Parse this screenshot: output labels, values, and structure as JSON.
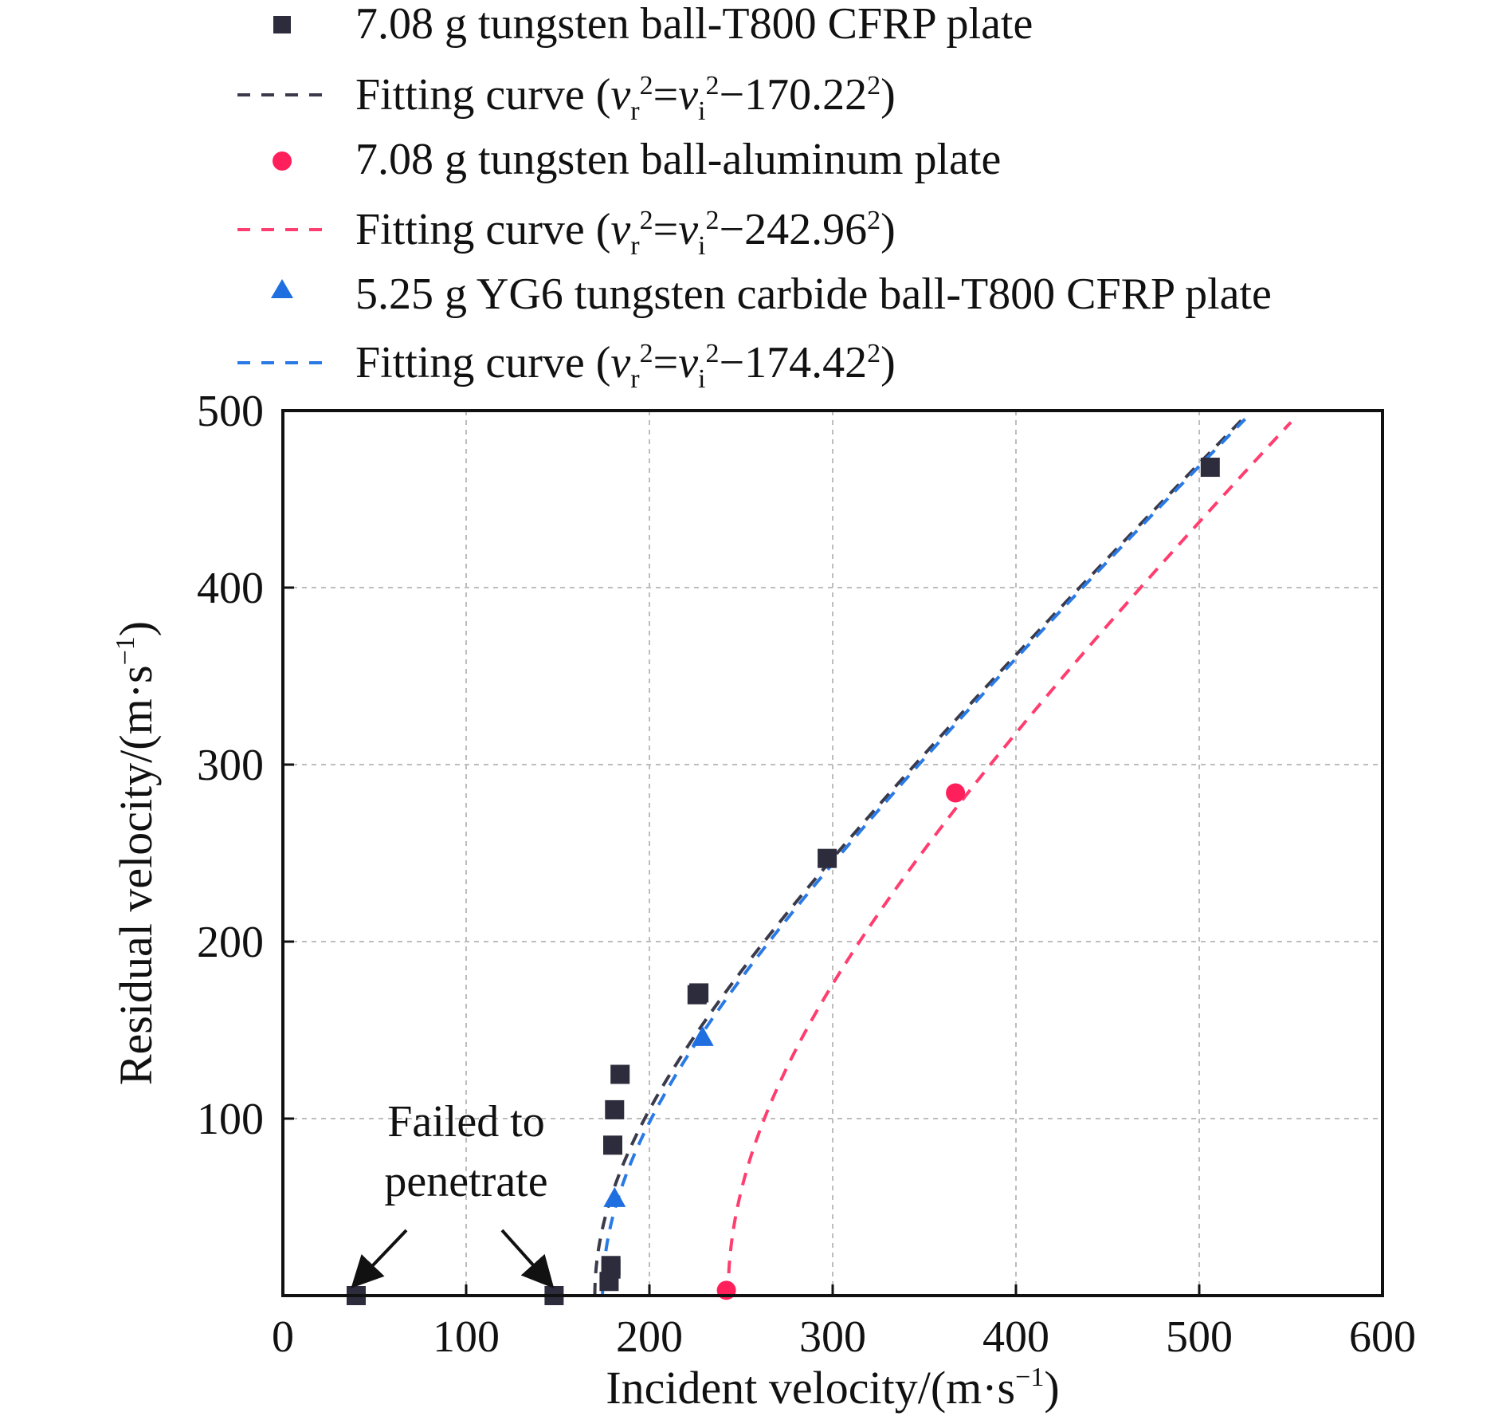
{
  "chart_data": {
    "type": "scatter",
    "xlabel": "Incident velocity/(m·s",
    "xlabel_sup": "−1",
    "xlabel_tail": ")",
    "ylabel": "Residual velocity/(m·s",
    "ylabel_sup": "−1",
    "ylabel_tail": ")",
    "xlim": [
      0,
      600
    ],
    "ylim": [
      0,
      500
    ],
    "x_ticks": [
      0,
      100,
      200,
      300,
      400,
      500,
      600
    ],
    "x_tick_labels": [
      "0",
      "100",
      "200",
      "300",
      "400",
      "500",
      "600"
    ],
    "y_ticks": [
      100,
      200,
      300,
      400,
      500
    ],
    "y_tick_labels": [
      "100",
      "200",
      "300",
      "400",
      "500"
    ],
    "grid": true,
    "legend_position": "top",
    "series": [
      {
        "name": "7.08 g tungsten ball-T800 CFRP plate",
        "kind": "scatter",
        "marker": "square",
        "color": "#2d2c3c",
        "x": [
          40,
          148,
          178,
          179,
          179,
          180,
          181,
          184,
          226,
          227,
          297,
          506
        ],
        "y": [
          0,
          0,
          8,
          15,
          17,
          85,
          105,
          125,
          170,
          171,
          247,
          468
        ]
      },
      {
        "name": "Fitting curve",
        "equation": {
          "lhs": "v",
          "lhs_sub": "r",
          "eq": "=",
          "rhs": "v",
          "rhs_sub": "i",
          "minus": "−170.22",
          "sup": "2"
        },
        "kind": "fit",
        "dash": "dashed",
        "color": "#3a3a4a",
        "vc": 170.22,
        "x_range": [
          170.22,
          525
        ]
      },
      {
        "name": "7.08 g tungsten ball-aluminum plate",
        "kind": "scatter",
        "marker": "circle",
        "color": "#ff1f5b",
        "x": [
          242,
          367
        ],
        "y": [
          3,
          284
        ]
      },
      {
        "name": "Fitting curve",
        "equation": {
          "lhs": "v",
          "lhs_sub": "r",
          "eq": "=",
          "rhs": "v",
          "rhs_sub": "i",
          "minus": "−242.96",
          "sup": "2"
        },
        "kind": "fit",
        "dash": "dashed",
        "color": "#ff3d6e",
        "vc": 242.96,
        "x_range": [
          242.96,
          550
        ]
      },
      {
        "name": "5.25 g YG6 tungsten carbide ball-T800 CFRP plate",
        "kind": "scatter",
        "marker": "triangle",
        "color": "#1f6fe0",
        "x": [
          181,
          229
        ],
        "y": [
          55,
          146
        ]
      },
      {
        "name": "Fitting curve",
        "equation": {
          "lhs": "v",
          "lhs_sub": "r",
          "eq": "=",
          "rhs": "v",
          "rhs_sub": "i",
          "minus": "−174.42",
          "sup": "2"
        },
        "kind": "fit",
        "dash": "dashed",
        "color": "#2a7ae6",
        "vc": 174.42,
        "x_range": [
          174.42,
          525
        ]
      }
    ],
    "annotations": [
      {
        "text_line1": "Failed to",
        "text_line2": "penetrate",
        "arrow_targets_x": [
          40,
          148
        ],
        "arrow_targets_y": [
          0,
          0
        ]
      }
    ]
  }
}
